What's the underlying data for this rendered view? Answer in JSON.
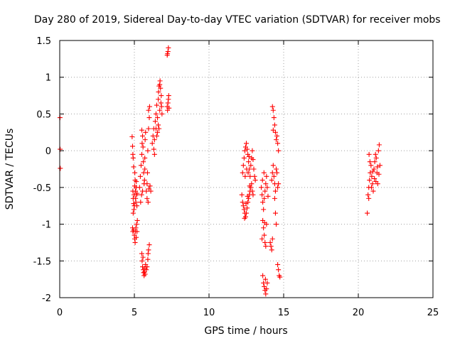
{
  "chart_data": {
    "type": "scatter",
    "title": "Day 280 of 2019, Sidereal Day-to-day VTEC variation (SDTVAR) for receiver mobs",
    "xlabel": "GPS time / hours",
    "ylabel": "SDTVAR / TECUs",
    "xlim": [
      0,
      25
    ],
    "ylim": [
      -2,
      1.5
    ],
    "xticks": [
      0,
      5,
      10,
      15,
      20,
      25
    ],
    "yticks": [
      -2,
      -1.5,
      -1,
      -0.5,
      0,
      0.5,
      1,
      1.5
    ],
    "xtick_labels": [
      "0",
      "5",
      "10",
      "15",
      "20",
      "25"
    ],
    "ytick_labels": [
      "-2",
      "-1.5",
      "-1",
      "-0.5",
      "0",
      "0.5",
      "1",
      "1.5"
    ],
    "grid": true,
    "marker": "+",
    "color": "#ff0000",
    "series": [
      {
        "name": "SDTVAR",
        "points": [
          [
            0.02,
            0.45
          ],
          [
            0.03,
            0.02
          ],
          [
            0.04,
            -0.24
          ],
          [
            4.85,
            0.19
          ],
          [
            4.88,
            0.06
          ],
          [
            4.9,
            -0.05
          ],
          [
            4.92,
            -0.1
          ],
          [
            4.95,
            -0.22
          ],
          [
            4.9,
            -0.55
          ],
          [
            4.92,
            -0.65
          ],
          [
            4.95,
            -0.72
          ],
          [
            4.97,
            -0.8
          ],
          [
            4.92,
            -0.85
          ],
          [
            4.98,
            -0.6
          ],
          [
            5.0,
            -0.75
          ],
          [
            5.02,
            -0.48
          ],
          [
            5.03,
            -0.3
          ],
          [
            5.05,
            -0.4
          ],
          [
            5.07,
            -0.55
          ],
          [
            5.08,
            -0.65
          ],
          [
            5.1,
            -0.7
          ],
          [
            5.12,
            -0.5
          ],
          [
            5.13,
            -0.42
          ],
          [
            5.15,
            -0.6
          ],
          [
            5.17,
            -0.75
          ],
          [
            5.18,
            -0.58
          ],
          [
            4.88,
            -1.05
          ],
          [
            4.9,
            -1.1
          ],
          [
            4.95,
            -1.08
          ],
          [
            5.0,
            -1.15
          ],
          [
            5.02,
            -1.2
          ],
          [
            5.05,
            -1.25
          ],
          [
            5.08,
            -1.1
          ],
          [
            5.1,
            -1.05
          ],
          [
            5.15,
            -1.0
          ],
          [
            5.2,
            -0.95
          ],
          [
            5.18,
            -1.1
          ],
          [
            5.12,
            -1.18
          ],
          [
            5.35,
            -0.5
          ],
          [
            5.4,
            -0.35
          ],
          [
            5.45,
            -0.2
          ],
          [
            5.5,
            -0.05
          ],
          [
            5.52,
            0.1
          ],
          [
            5.55,
            0.2
          ],
          [
            5.5,
            0.28
          ],
          [
            5.58,
            0.05
          ],
          [
            5.6,
            -0.15
          ],
          [
            5.62,
            -0.3
          ],
          [
            5.65,
            -0.45
          ],
          [
            5.55,
            -0.55
          ],
          [
            5.48,
            -0.6
          ],
          [
            5.42,
            -0.7
          ],
          [
            5.7,
            -0.1
          ],
          [
            5.72,
            0.15
          ],
          [
            5.75,
            0.25
          ],
          [
            5.7,
            -0.25
          ],
          [
            5.68,
            -0.4
          ],
          [
            5.8,
            -0.55
          ],
          [
            5.85,
            -0.45
          ],
          [
            5.9,
            0.0
          ],
          [
            5.95,
            0.3
          ],
          [
            6.0,
            0.45
          ],
          [
            5.95,
            0.55
          ],
          [
            6.02,
            0.6
          ],
          [
            5.88,
            -0.3
          ],
          [
            5.85,
            -0.65
          ],
          [
            5.92,
            -0.7
          ],
          [
            5.98,
            -0.52
          ],
          [
            6.05,
            -0.48
          ],
          [
            6.1,
            -0.55
          ],
          [
            5.5,
            -1.4
          ],
          [
            5.52,
            -1.5
          ],
          [
            5.55,
            -1.58
          ],
          [
            5.6,
            -1.62
          ],
          [
            5.62,
            -1.66
          ],
          [
            5.65,
            -1.7
          ],
          [
            5.7,
            -1.6
          ],
          [
            5.72,
            -1.68
          ],
          [
            5.75,
            -1.55
          ],
          [
            5.8,
            -1.62
          ],
          [
            5.85,
            -1.58
          ],
          [
            5.9,
            -1.48
          ],
          [
            5.92,
            -1.4
          ],
          [
            5.95,
            -1.35
          ],
          [
            6.0,
            -1.28
          ],
          [
            5.58,
            -1.45
          ],
          [
            5.68,
            -1.65
          ],
          [
            6.2,
            0.1
          ],
          [
            6.25,
            0.2
          ],
          [
            6.3,
            0.3
          ],
          [
            6.35,
            0.15
          ],
          [
            6.4,
            0.4
          ],
          [
            6.45,
            0.5
          ],
          [
            6.5,
            0.62
          ],
          [
            6.55,
            0.45
          ],
          [
            6.6,
            0.7
          ],
          [
            6.62,
            0.8
          ],
          [
            6.65,
            0.88
          ],
          [
            6.7,
            0.9
          ],
          [
            6.72,
            0.95
          ],
          [
            6.75,
            0.85
          ],
          [
            6.8,
            0.75
          ],
          [
            6.82,
            0.6
          ],
          [
            6.85,
            0.5
          ],
          [
            6.6,
            0.35
          ],
          [
            6.55,
            0.25
          ],
          [
            6.5,
            0.2
          ],
          [
            6.45,
            0.3
          ],
          [
            6.7,
            0.55
          ],
          [
            6.78,
            0.65
          ],
          [
            6.35,
            -0.05
          ],
          [
            6.3,
            0.02
          ],
          [
            6.65,
            0.3
          ],
          [
            7.2,
            0.6
          ],
          [
            7.22,
            0.55
          ],
          [
            7.25,
            0.65
          ],
          [
            7.28,
            0.7
          ],
          [
            7.3,
            0.75
          ],
          [
            7.32,
            0.58
          ],
          [
            7.2,
            1.3
          ],
          [
            7.25,
            1.35
          ],
          [
            7.28,
            1.4
          ],
          [
            7.22,
            1.32
          ],
          [
            12.2,
            -0.6
          ],
          [
            12.25,
            -0.7
          ],
          [
            12.3,
            -0.75
          ],
          [
            12.35,
            -0.8
          ],
          [
            12.4,
            -0.85
          ],
          [
            12.45,
            -0.9
          ],
          [
            12.5,
            -0.85
          ],
          [
            12.55,
            -0.78
          ],
          [
            12.6,
            -0.7
          ],
          [
            12.65,
            -0.65
          ],
          [
            12.7,
            -0.6
          ],
          [
            12.75,
            -0.55
          ],
          [
            12.8,
            -0.5
          ],
          [
            12.85,
            -0.45
          ],
          [
            12.9,
            -0.55
          ],
          [
            12.95,
            -0.6
          ],
          [
            12.38,
            -0.92
          ],
          [
            12.48,
            -0.72
          ],
          [
            12.58,
            -0.62
          ],
          [
            12.72,
            -0.48
          ],
          [
            12.25,
            -0.3
          ],
          [
            12.3,
            -0.2
          ],
          [
            12.35,
            -0.1
          ],
          [
            12.4,
            0.0
          ],
          [
            12.45,
            0.05
          ],
          [
            12.5,
            0.1
          ],
          [
            12.55,
            0.02
          ],
          [
            12.6,
            -0.05
          ],
          [
            12.65,
            -0.15
          ],
          [
            12.7,
            -0.25
          ],
          [
            12.75,
            -0.35
          ],
          [
            12.8,
            -0.2
          ],
          [
            12.85,
            -0.1
          ],
          [
            12.9,
            0.0
          ],
          [
            12.95,
            -0.12
          ],
          [
            13.0,
            -0.25
          ],
          [
            13.05,
            -0.35
          ],
          [
            13.1,
            -0.4
          ],
          [
            12.42,
            -0.35
          ],
          [
            12.52,
            -0.25
          ],
          [
            12.62,
            -0.3
          ],
          [
            12.68,
            -0.08
          ],
          [
            13.5,
            -0.5
          ],
          [
            13.55,
            -0.6
          ],
          [
            13.6,
            -0.7
          ],
          [
            13.65,
            -0.8
          ],
          [
            13.7,
            -0.65
          ],
          [
            13.75,
            -0.55
          ],
          [
            13.8,
            -0.45
          ],
          [
            13.85,
            -0.35
          ],
          [
            13.9,
            -0.5
          ],
          [
            13.95,
            -0.62
          ],
          [
            13.58,
            -0.4
          ],
          [
            13.68,
            -0.3
          ],
          [
            13.6,
            -0.95
          ],
          [
            13.65,
            -1.05
          ],
          [
            13.7,
            -1.15
          ],
          [
            13.75,
            -1.25
          ],
          [
            13.8,
            -1.3
          ],
          [
            13.55,
            -1.2
          ],
          [
            13.85,
            -1.0
          ],
          [
            13.72,
            -0.98
          ],
          [
            13.6,
            -1.7
          ],
          [
            13.65,
            -1.8
          ],
          [
            13.7,
            -1.85
          ],
          [
            13.75,
            -1.9
          ],
          [
            13.8,
            -1.95
          ],
          [
            13.85,
            -1.88
          ],
          [
            13.9,
            -1.8
          ],
          [
            13.78,
            -1.75
          ],
          [
            14.1,
            -1.25
          ],
          [
            14.15,
            -1.3
          ],
          [
            14.2,
            -1.35
          ],
          [
            14.25,
            -1.2
          ],
          [
            14.2,
            -0.4
          ],
          [
            14.25,
            -0.3
          ],
          [
            14.3,
            -0.2
          ],
          [
            14.35,
            -0.35
          ],
          [
            14.4,
            -0.45
          ],
          [
            14.45,
            -0.55
          ],
          [
            14.5,
            -0.25
          ],
          [
            14.55,
            -0.3
          ],
          [
            14.6,
            -0.5
          ],
          [
            14.65,
            -0.45
          ],
          [
            14.4,
            -0.65
          ],
          [
            14.45,
            -0.85
          ],
          [
            14.5,
            -1.0
          ],
          [
            14.25,
            0.6
          ],
          [
            14.3,
            0.55
          ],
          [
            14.35,
            0.45
          ],
          [
            14.4,
            0.35
          ],
          [
            14.45,
            0.25
          ],
          [
            14.5,
            0.15
          ],
          [
            14.55,
            0.2
          ],
          [
            14.6,
            0.1
          ],
          [
            14.65,
            0.0
          ],
          [
            14.3,
            0.28
          ],
          [
            14.6,
            -1.55
          ],
          [
            14.65,
            -1.62
          ],
          [
            14.7,
            -1.7
          ],
          [
            14.75,
            -1.72
          ],
          [
            20.6,
            -0.85
          ],
          [
            20.65,
            -0.6
          ],
          [
            20.7,
            -0.5
          ],
          [
            20.75,
            -0.4
          ],
          [
            20.8,
            -0.3
          ],
          [
            20.85,
            -0.2
          ],
          [
            20.9,
            -0.35
          ],
          [
            20.95,
            -0.45
          ],
          [
            21.0,
            -0.55
          ],
          [
            21.05,
            -0.25
          ],
          [
            21.1,
            -0.15
          ],
          [
            21.15,
            -0.05
          ],
          [
            21.2,
            -0.1
          ],
          [
            21.25,
            -0.3
          ],
          [
            21.3,
            -0.45
          ],
          [
            21.35,
            0.0
          ],
          [
            21.4,
            0.08
          ],
          [
            21.45,
            -0.2
          ],
          [
            20.7,
            -0.65
          ],
          [
            20.72,
            -0.05
          ],
          [
            20.78,
            -0.15
          ],
          [
            20.88,
            -0.5
          ],
          [
            20.98,
            -0.28
          ],
          [
            21.08,
            -0.38
          ],
          [
            21.18,
            -0.42
          ],
          [
            21.28,
            -0.22
          ],
          [
            21.38,
            -0.32
          ]
        ]
      }
    ]
  }
}
